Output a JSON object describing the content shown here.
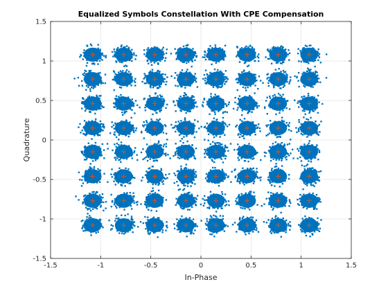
{
  "chart_data": {
    "type": "scatter",
    "title": "Equalized Symbols Constellation With CPE Compensation",
    "xlabel": "In-Phase",
    "ylabel": "Quadrature",
    "xlim": [
      -1.5,
      1.5
    ],
    "ylim": [
      -1.5,
      1.5
    ],
    "xticks": [
      -1.5,
      -1,
      -0.5,
      0,
      0.5,
      1,
      1.5
    ],
    "yticks": [
      -1.5,
      -1,
      -0.5,
      0,
      0.5,
      1,
      1.5
    ],
    "xtick_labels": [
      "-1.5",
      "-1",
      "-0.5",
      "0",
      "0.5",
      "1",
      "1.5"
    ],
    "ytick_labels": [
      "-1.5",
      "-1",
      "-0.5",
      "0",
      "0.5",
      "1",
      "1.5"
    ],
    "grid": true,
    "legend": "none",
    "series": [
      {
        "kind": "received-symbols",
        "marker": "dot",
        "color": "#0072BD",
        "cluster_centers_x": [
          -1.08,
          -0.77,
          -0.46,
          -0.15,
          0.15,
          0.46,
          0.77,
          1.08
        ],
        "cluster_centers_y": [
          -1.08,
          -0.77,
          -0.46,
          -0.15,
          0.15,
          0.46,
          0.77,
          1.08
        ],
        "cluster_spread": 0.07
      },
      {
        "kind": "reference-constellation",
        "marker": "plus",
        "color": "#D95319",
        "x": [
          -1.08,
          -0.77,
          -0.46,
          -0.15,
          0.15,
          0.46,
          0.77,
          1.08
        ],
        "y": [
          -1.08,
          -0.77,
          -0.46,
          -0.15,
          0.15,
          0.46,
          0.77,
          1.08
        ]
      }
    ]
  }
}
